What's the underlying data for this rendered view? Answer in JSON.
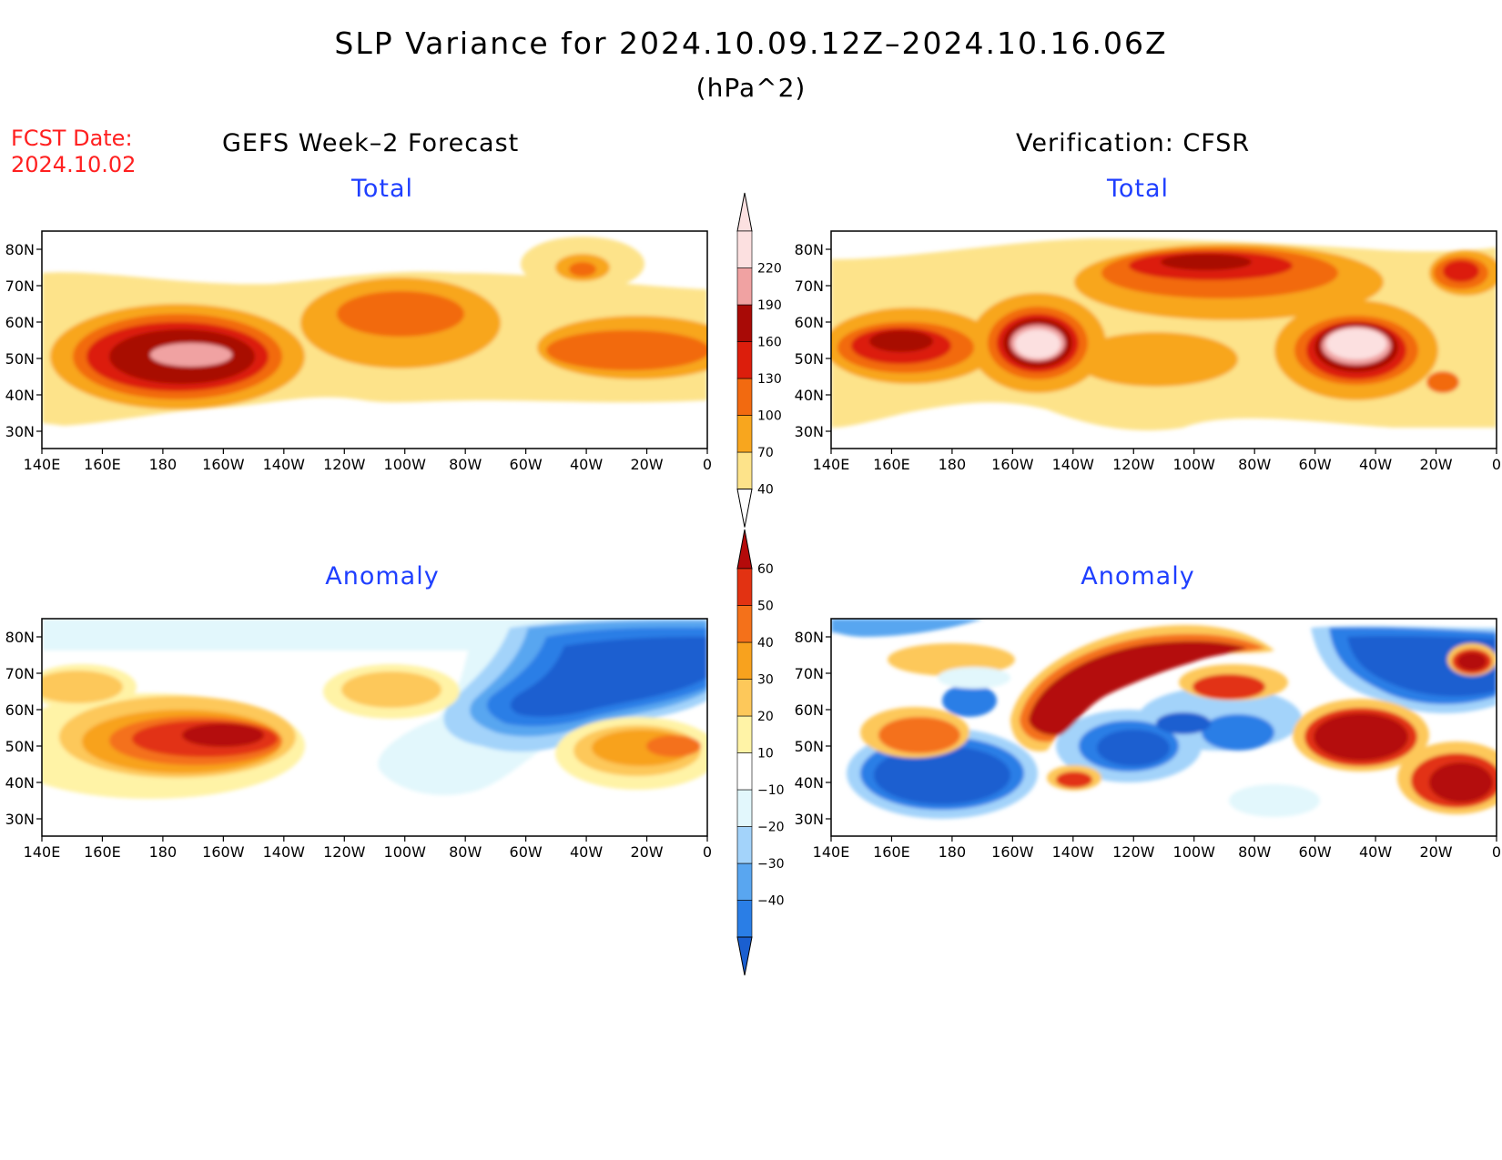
{
  "title": "SLP Variance for 2024.10.09.12Z–2024.10.16.06Z",
  "units": "(hPa^2)",
  "fcst_date_label": "FCST Date:",
  "fcst_date": "2024.10.02",
  "left_header": "GEFS Week–2 Forecast",
  "right_header": "Verification: CFSR",
  "panel_titles": {
    "fcst_total": "Total",
    "verif_total": "Total",
    "fcst_anomaly": "Anomaly",
    "verif_anomaly": "Anomaly"
  },
  "lat_labels": [
    "80N",
    "70N",
    "60N",
    "50N",
    "40N",
    "30N"
  ],
  "lon_labels": [
    "140E",
    "160E",
    "180",
    "160W",
    "140W",
    "120W",
    "100W",
    "80W",
    "60W",
    "40W",
    "20W",
    "0"
  ],
  "total_colorbar": {
    "levels": [
      "40",
      "70",
      "100",
      "130",
      "160",
      "190",
      "220"
    ],
    "colors": [
      "#fde38a",
      "#f8a61e",
      "#f26a10",
      "#dc1e0c",
      "#a80a06",
      "#f0a2a2",
      "#fce0e0"
    ]
  },
  "anomaly_colorbar": {
    "levels": [
      "−40",
      "−30",
      "−20",
      "−10",
      "10",
      "20",
      "30",
      "40",
      "50",
      "60"
    ],
    "colors": [
      "#1a5fd0",
      "#2a7ee6",
      "#59a6f0",
      "#a3d3fa",
      "#e2f7fc",
      "#ffffff",
      "#fff3a6",
      "#fdc85a",
      "#f8a21e",
      "#f4711a",
      "#e23212",
      "#b40a0a"
    ]
  },
  "colors": {
    "title": "#000000",
    "fcst_date": "#ff2020",
    "panel_title": "#1f3fff"
  }
}
